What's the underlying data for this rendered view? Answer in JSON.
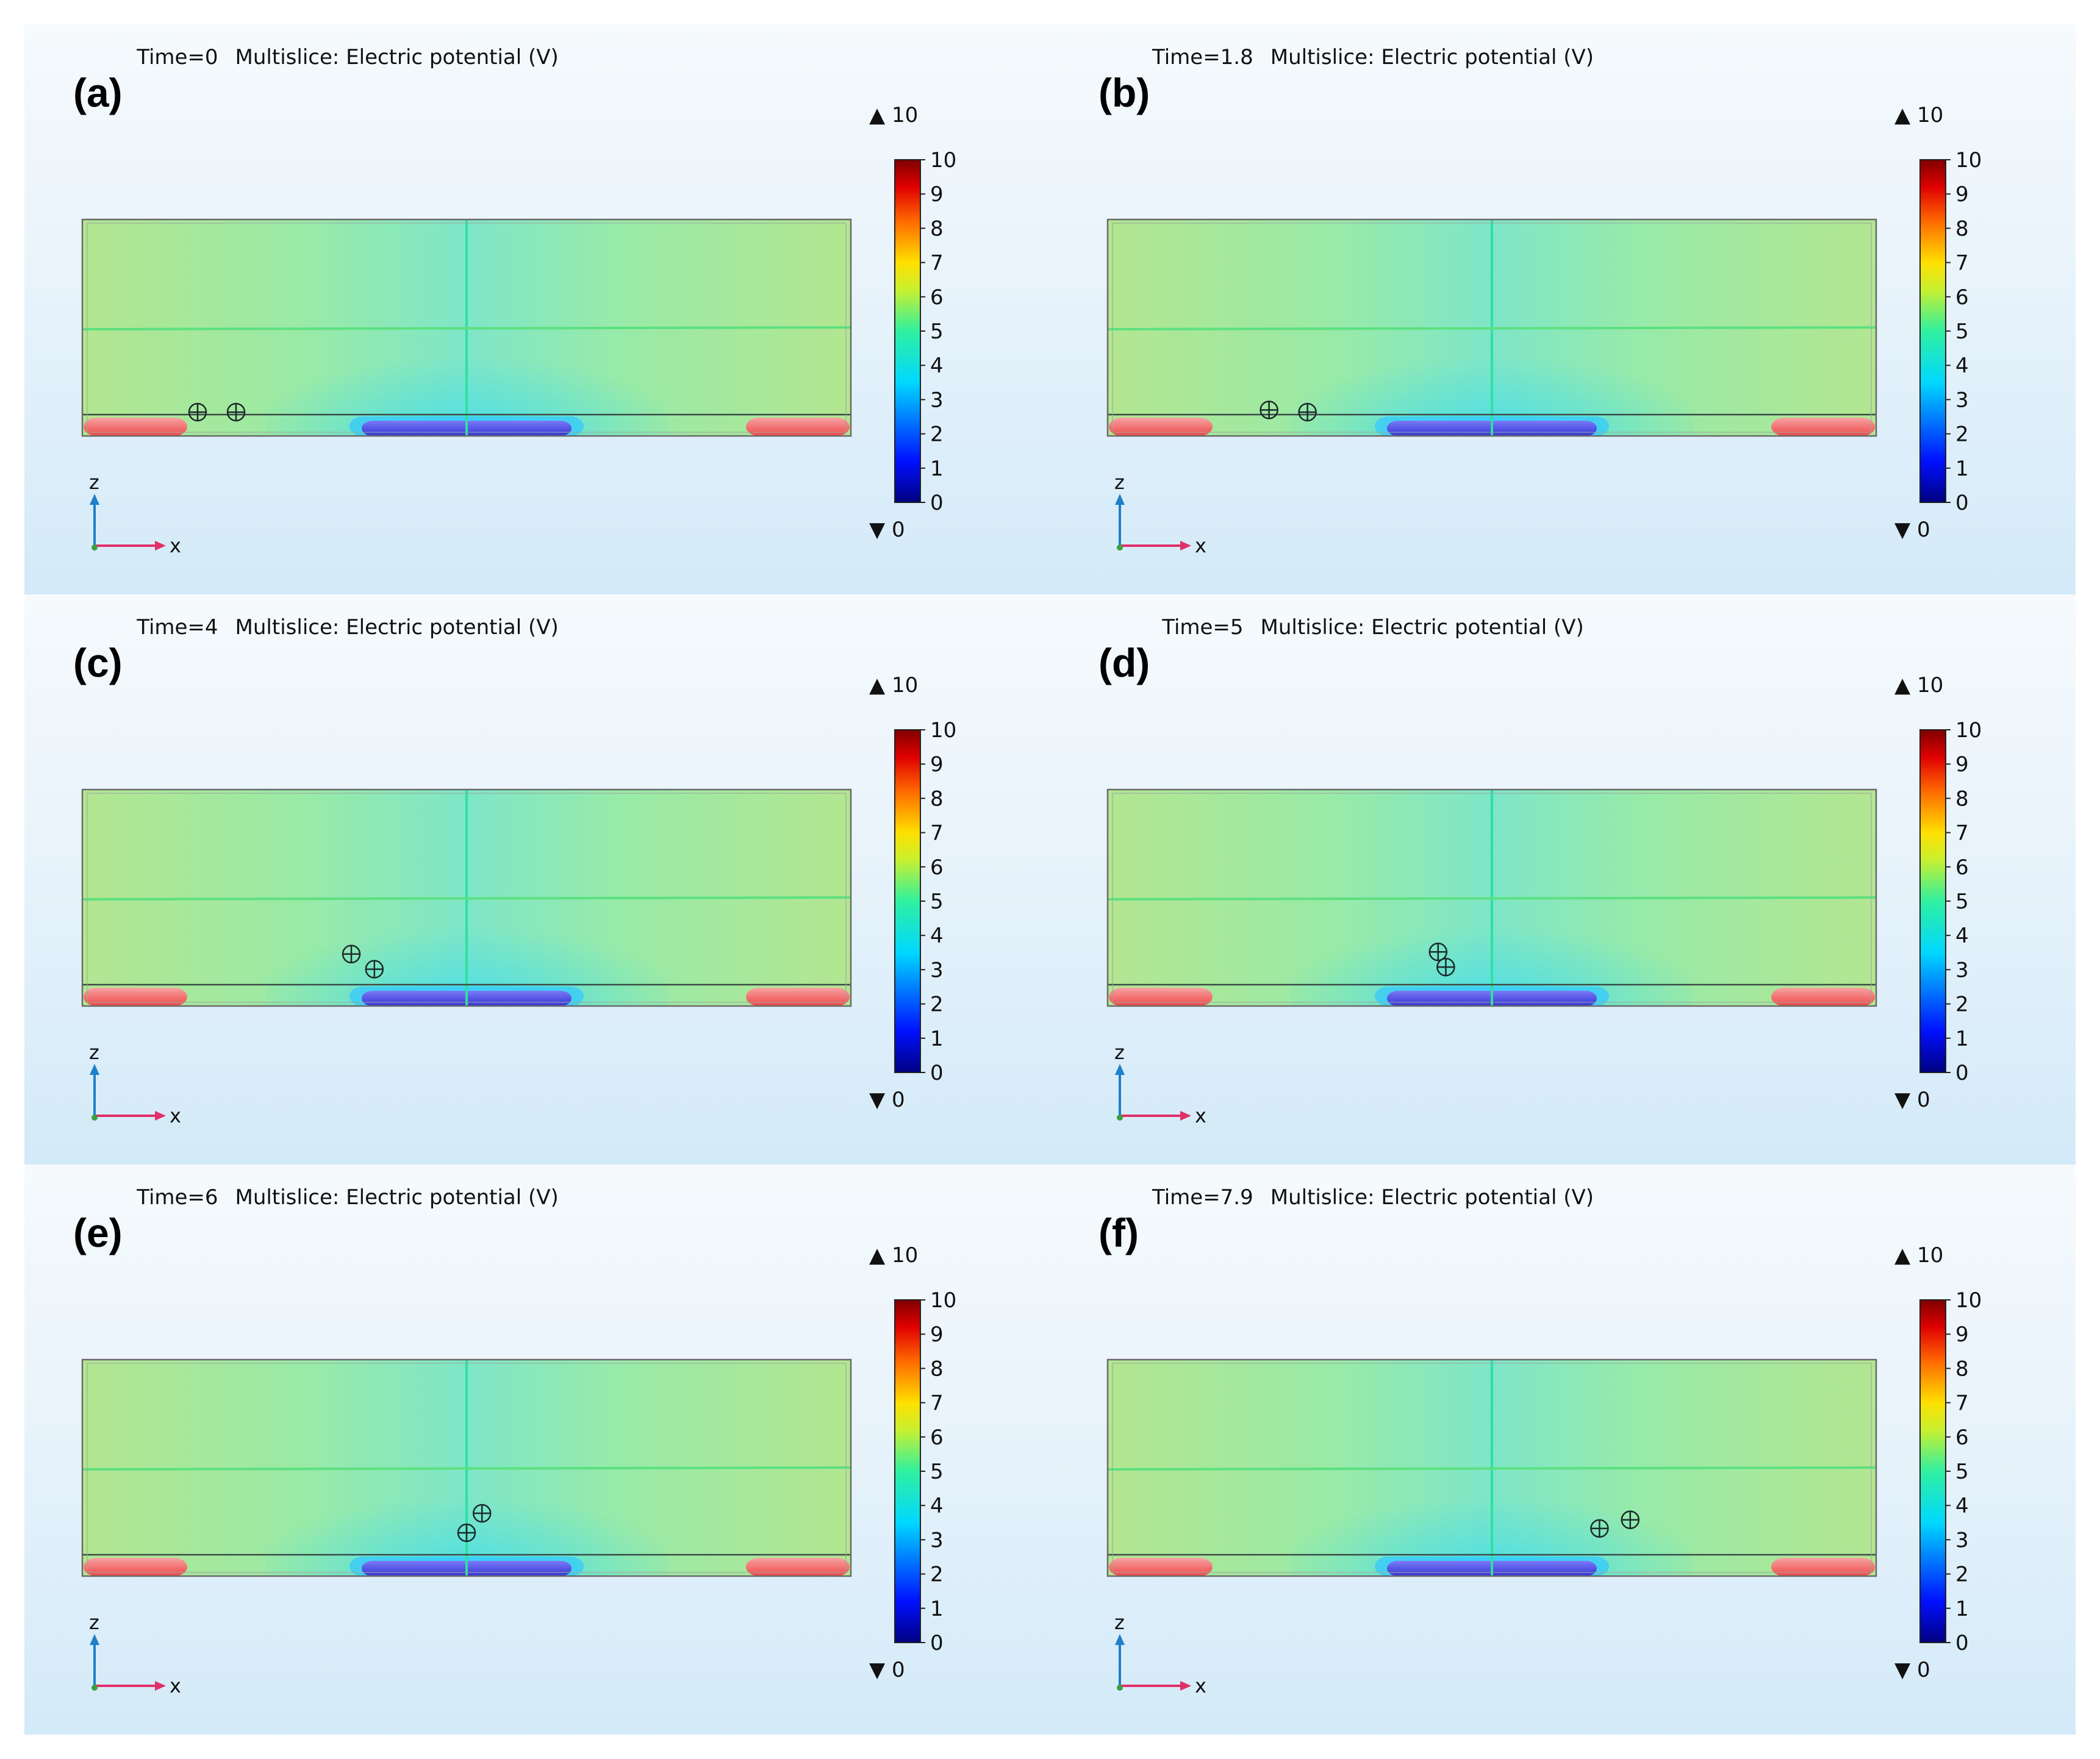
{
  "chart_data": [
    {
      "type": "heatmap",
      "label": "(a)",
      "time": "Time=0",
      "title": "Multislice: Electric potential (V)",
      "colorbar": {
        "min": 0,
        "max": 10,
        "ticks": [
          0,
          1,
          2,
          3,
          4,
          5,
          6,
          7,
          8,
          9,
          10
        ],
        "max_marker": "▲ 10",
        "min_marker": "▼ 0"
      },
      "axes": {
        "vertical": "z",
        "horizontal": "x"
      },
      "particles": [
        {
          "x": -0.35,
          "z": 0.11
        },
        {
          "x": -0.3,
          "z": 0.11
        }
      ]
    },
    {
      "type": "heatmap",
      "label": "(b)",
      "time": "Time=1.8",
      "title": "Multislice: Electric potential (V)",
      "colorbar": {
        "min": 0,
        "max": 10,
        "ticks": [
          0,
          1,
          2,
          3,
          4,
          5,
          6,
          7,
          8,
          9,
          10
        ],
        "max_marker": "▲ 10",
        "min_marker": "▼ 0"
      },
      "axes": {
        "vertical": "z",
        "horizontal": "x"
      },
      "particles": [
        {
          "x": -0.29,
          "z": 0.12
        },
        {
          "x": -0.24,
          "z": 0.11
        }
      ]
    },
    {
      "type": "heatmap",
      "label": "(c)",
      "time": "Time=4",
      "title": "Multislice: Electric potential (V)",
      "colorbar": {
        "min": 0,
        "max": 10,
        "ticks": [
          0,
          1,
          2,
          3,
          4,
          5,
          6,
          7,
          8,
          9,
          10
        ],
        "max_marker": "▲ 10",
        "min_marker": "▼ 0"
      },
      "axes": {
        "vertical": "z",
        "horizontal": "x"
      },
      "particles": [
        {
          "x": -0.15,
          "z": 0.24
        },
        {
          "x": -0.12,
          "z": 0.17
        }
      ]
    },
    {
      "type": "heatmap",
      "label": "(d)",
      "time": "Time=5",
      "title": "Multislice: Electric potential (V)",
      "colorbar": {
        "min": 0,
        "max": 10,
        "ticks": [
          0,
          1,
          2,
          3,
          4,
          5,
          6,
          7,
          8,
          9,
          10
        ],
        "max_marker": "▲ 10",
        "min_marker": "▼ 0"
      },
      "axes": {
        "vertical": "z",
        "horizontal": "x"
      },
      "particles": [
        {
          "x": -0.07,
          "z": 0.25
        },
        {
          "x": -0.06,
          "z": 0.18
        }
      ]
    },
    {
      "type": "heatmap",
      "label": "(e)",
      "time": "Time=6",
      "title": "Multislice: Electric potential (V)",
      "colorbar": {
        "min": 0,
        "max": 10,
        "ticks": [
          0,
          1,
          2,
          3,
          4,
          5,
          6,
          7,
          8,
          9,
          10
        ],
        "max_marker": "▲ 10",
        "min_marker": "▼ 0"
      },
      "axes": {
        "vertical": "z",
        "horizontal": "x"
      },
      "particles": [
        {
          "x": 0.02,
          "z": 0.29
        },
        {
          "x": 0.0,
          "z": 0.2
        }
      ]
    },
    {
      "type": "heatmap",
      "label": "(f)",
      "time": "Time=7.9",
      "title": "Multislice: Electric potential (V)",
      "colorbar": {
        "min": 0,
        "max": 10,
        "ticks": [
          0,
          1,
          2,
          3,
          4,
          5,
          6,
          7,
          8,
          9,
          10
        ],
        "max_marker": "▲ 10",
        "min_marker": "▼ 0"
      },
      "axes": {
        "vertical": "z",
        "horizontal": "x"
      },
      "particles": [
        {
          "x": 0.14,
          "z": 0.22
        },
        {
          "x": 0.18,
          "z": 0.26
        }
      ]
    }
  ]
}
